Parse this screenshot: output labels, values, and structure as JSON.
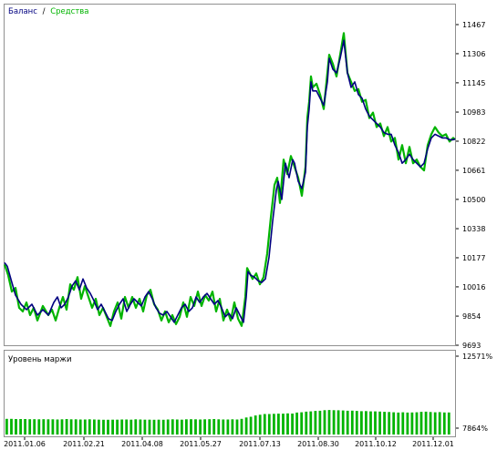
{
  "colors": {
    "balance": "#000080",
    "equity": "#00b400",
    "margin_bars": "#00b400",
    "frame": "#909090",
    "grid": "#e0e0e0"
  },
  "chart_data": [
    {
      "type": "line",
      "legend": {
        "placement": "top-left",
        "separator": "/",
        "balance_label": "Баланс",
        "equity_label": "Средства"
      },
      "ylim": [
        9693,
        11550
      ],
      "y_ticks": [
        "11467",
        "11306",
        "11145",
        "10983",
        "10822",
        "10661",
        "10500",
        "10338",
        "10177",
        "10016",
        "9854",
        "9693"
      ],
      "grid": true,
      "series": [
        {
          "name": "Баланс",
          "values": [
            [
              0,
              10150
            ],
            [
              3,
              10130
            ],
            [
              8,
              10040
            ],
            [
              12,
              9970
            ],
            [
              18,
              9920
            ],
            [
              24,
              9890
            ],
            [
              30,
              9920
            ],
            [
              36,
              9860
            ],
            [
              42,
              9890
            ],
            [
              48,
              9860
            ],
            [
              54,
              9930
            ],
            [
              58,
              9960
            ],
            [
              62,
              9900
            ],
            [
              66,
              9920
            ],
            [
              70,
              9960
            ],
            [
              74,
              10020
            ],
            [
              78,
              10050
            ],
            [
              82,
              10000
            ],
            [
              86,
              10060
            ],
            [
              90,
              10010
            ],
            [
              94,
              9980
            ],
            [
              98,
              9940
            ],
            [
              102,
              9890
            ],
            [
              106,
              9920
            ],
            [
              110,
              9880
            ],
            [
              114,
              9840
            ],
            [
              118,
              9830
            ],
            [
              122,
              9880
            ],
            [
              126,
              9920
            ],
            [
              130,
              9950
            ],
            [
              134,
              9880
            ],
            [
              138,
              9920
            ],
            [
              142,
              9950
            ],
            [
              146,
              9930
            ],
            [
              150,
              9910
            ],
            [
              154,
              9960
            ],
            [
              158,
              9990
            ],
            [
              162,
              9950
            ],
            [
              166,
              9900
            ],
            [
              170,
              9870
            ],
            [
              174,
              9860
            ],
            [
              178,
              9880
            ],
            [
              182,
              9850
            ],
            [
              186,
              9820
            ],
            [
              190,
              9860
            ],
            [
              194,
              9900
            ],
            [
              198,
              9920
            ],
            [
              202,
              9880
            ],
            [
              206,
              9900
            ],
            [
              210,
              9960
            ],
            [
              214,
              9930
            ],
            [
              218,
              9960
            ],
            [
              222,
              9980
            ],
            [
              226,
              9950
            ],
            [
              230,
              9920
            ],
            [
              234,
              9940
            ],
            [
              238,
              9900
            ],
            [
              242,
              9850
            ],
            [
              246,
              9870
            ],
            [
              250,
              9840
            ],
            [
              254,
              9900
            ],
            [
              258,
              9860
            ],
            [
              262,
              9820
            ],
            [
              265,
              9960
            ],
            [
              267,
              10100
            ],
            [
              270,
              10080
            ],
            [
              274,
              10070
            ],
            [
              278,
              10050
            ],
            [
              282,
              10040
            ],
            [
              286,
              10060
            ],
            [
              290,
              10180
            ],
            [
              294,
              10380
            ],
            [
              298,
              10550
            ],
            [
              300,
              10600
            ],
            [
              304,
              10500
            ],
            [
              308,
              10700
            ],
            [
              312,
              10620
            ],
            [
              316,
              10720
            ],
            [
              318,
              10700
            ],
            [
              322,
              10600
            ],
            [
              326,
              10560
            ],
            [
              330,
              10650
            ],
            [
              332,
              10900
            ],
            [
              334,
              11000
            ],
            [
              336,
              11150
            ],
            [
              338,
              11100
            ],
            [
              342,
              11100
            ],
            [
              346,
              11060
            ],
            [
              350,
              11020
            ],
            [
              354,
              11150
            ],
            [
              356,
              11280
            ],
            [
              360,
              11220
            ],
            [
              364,
              11200
            ],
            [
              368,
              11280
            ],
            [
              372,
              11380
            ],
            [
              376,
              11200
            ],
            [
              380,
              11120
            ],
            [
              384,
              11150
            ],
            [
              388,
              11080
            ],
            [
              392,
              11060
            ],
            [
              396,
              11000
            ],
            [
              400,
              10960
            ],
            [
              404,
              10940
            ],
            [
              408,
              10920
            ],
            [
              412,
              10900
            ],
            [
              416,
              10870
            ],
            [
              420,
              10860
            ],
            [
              424,
              10860
            ],
            [
              428,
              10800
            ],
            [
              432,
              10760
            ],
            [
              436,
              10700
            ],
            [
              440,
              10720
            ],
            [
              444,
              10750
            ],
            [
              448,
              10720
            ],
            [
              452,
              10700
            ],
            [
              456,
              10680
            ],
            [
              460,
              10700
            ],
            [
              464,
              10780
            ],
            [
              468,
              10840
            ],
            [
              472,
              10860
            ],
            [
              476,
              10850
            ],
            [
              480,
              10840
            ],
            [
              484,
              10840
            ],
            [
              488,
              10830
            ],
            [
              492,
              10830
            ],
            [
              494,
              10835
            ]
          ]
        },
        {
          "name": "Средства",
          "values": [
            [
              0,
              10140
            ],
            [
              4,
              10080
            ],
            [
              8,
              9990
            ],
            [
              12,
              10010
            ],
            [
              16,
              9900
            ],
            [
              20,
              9880
            ],
            [
              24,
              9930
            ],
            [
              28,
              9860
            ],
            [
              32,
              9900
            ],
            [
              36,
              9830
            ],
            [
              42,
              9910
            ],
            [
              48,
              9860
            ],
            [
              52,
              9890
            ],
            [
              56,
              9830
            ],
            [
              60,
              9900
            ],
            [
              64,
              9960
            ],
            [
              68,
              9890
            ],
            [
              72,
              10030
            ],
            [
              76,
              10000
            ],
            [
              80,
              10070
            ],
            [
              84,
              9950
            ],
            [
              88,
              10020
            ],
            [
              92,
              9960
            ],
            [
              96,
              9900
            ],
            [
              100,
              9950
            ],
            [
              104,
              9860
            ],
            [
              108,
              9900
            ],
            [
              112,
              9850
            ],
            [
              116,
              9800
            ],
            [
              120,
              9880
            ],
            [
              124,
              9930
            ],
            [
              128,
              9840
            ],
            [
              132,
              9960
            ],
            [
              136,
              9900
            ],
            [
              140,
              9960
            ],
            [
              144,
              9900
            ],
            [
              148,
              9950
            ],
            [
              152,
              9880
            ],
            [
              156,
              9970
            ],
            [
              160,
              10000
            ],
            [
              164,
              9920
            ],
            [
              168,
              9890
            ],
            [
              172,
              9830
            ],
            [
              176,
              9880
            ],
            [
              180,
              9820
            ],
            [
              184,
              9860
            ],
            [
              188,
              9810
            ],
            [
              192,
              9850
            ],
            [
              196,
              9930
            ],
            [
              200,
              9850
            ],
            [
              204,
              9960
            ],
            [
              208,
              9910
            ],
            [
              212,
              9990
            ],
            [
              216,
              9910
            ],
            [
              220,
              9970
            ],
            [
              224,
              9940
            ],
            [
              228,
              9990
            ],
            [
              232,
              9880
            ],
            [
              236,
              9950
            ],
            [
              240,
              9830
            ],
            [
              244,
              9890
            ],
            [
              248,
              9830
            ],
            [
              252,
              9930
            ],
            [
              256,
              9840
            ],
            [
              260,
              9800
            ],
            [
              264,
              9960
            ],
            [
              266,
              10120
            ],
            [
              268,
              10100
            ],
            [
              272,
              10060
            ],
            [
              276,
              10090
            ],
            [
              280,
              10030
            ],
            [
              284,
              10070
            ],
            [
              288,
              10200
            ],
            [
              292,
              10400
            ],
            [
              296,
              10580
            ],
            [
              299,
              10620
            ],
            [
              302,
              10480
            ],
            [
              306,
              10720
            ],
            [
              310,
              10640
            ],
            [
              314,
              10740
            ],
            [
              318,
              10680
            ],
            [
              322,
              10620
            ],
            [
              326,
              10520
            ],
            [
              330,
              10680
            ],
            [
              332,
              10950
            ],
            [
              334,
              11040
            ],
            [
              336,
              11180
            ],
            [
              338,
              11120
            ],
            [
              342,
              11140
            ],
            [
              346,
              11080
            ],
            [
              350,
              11000
            ],
            [
              354,
              11200
            ],
            [
              356,
              11300
            ],
            [
              360,
              11250
            ],
            [
              364,
              11180
            ],
            [
              368,
              11300
            ],
            [
              372,
              11420
            ],
            [
              376,
              11200
            ],
            [
              380,
              11150
            ],
            [
              384,
              11100
            ],
            [
              388,
              11110
            ],
            [
              392,
              11040
            ],
            [
              396,
              11050
            ],
            [
              400,
              10950
            ],
            [
              404,
              10980
            ],
            [
              408,
              10900
            ],
            [
              412,
              10920
            ],
            [
              416,
              10850
            ],
            [
              420,
              10900
            ],
            [
              424,
              10820
            ],
            [
              428,
              10840
            ],
            [
              432,
              10720
            ],
            [
              436,
              10800
            ],
            [
              440,
              10700
            ],
            [
              444,
              10790
            ],
            [
              448,
              10700
            ],
            [
              452,
              10720
            ],
            [
              456,
              10680
            ],
            [
              460,
              10660
            ],
            [
              464,
              10800
            ],
            [
              468,
              10860
            ],
            [
              472,
              10900
            ],
            [
              476,
              10870
            ],
            [
              480,
              10850
            ],
            [
              484,
              10860
            ],
            [
              488,
              10820
            ],
            [
              492,
              10840
            ],
            [
              494,
              10830
            ]
          ]
        }
      ]
    },
    {
      "type": "bar",
      "title": "Уровень маржи",
      "y_ticks": [
        "12571%",
        "7864%"
      ],
      "ylim": [
        7864,
        12571
      ],
      "values": [
        8470,
        8470,
        8460,
        8460,
        8460,
        8450,
        8450,
        8440,
        8450,
        8440,
        8440,
        8430,
        8440,
        8460,
        8440,
        8440,
        8430,
        8430,
        8440,
        8430,
        8420,
        8410,
        8410,
        8420,
        8420,
        8430,
        8430,
        8420,
        8440,
        8430,
        8420,
        8420,
        8410,
        8420,
        8410,
        8430,
        8440,
        8430,
        8420,
        8440,
        8450,
        8440,
        8430,
        8440,
        8450,
        8460,
        8440,
        8430,
        8430,
        8440,
        8430,
        8470,
        8560,
        8610,
        8690,
        8740,
        8790,
        8790,
        8800,
        8810,
        8810,
        8830,
        8820,
        8880,
        8900,
        8940,
        8960,
        8990,
        9000,
        9040,
        9050,
        9040,
        9030,
        9020,
        9000,
        9010,
        8990,
        8970,
        8980,
        8960,
        8960,
        8950,
        8930,
        8920,
        8900,
        8880,
        8900,
        8880,
        8890,
        8900,
        8930,
        8940,
        8920,
        8900,
        8910,
        8890,
        8890
      ]
    }
  ],
  "x_axis": {
    "labels": [
      "2011.01.06",
      "2011.02.21",
      "2011.04.08",
      "2011.05.27",
      "2011.07.13",
      "2011.08.30",
      "2011.10.12",
      "2011.12.01"
    ]
  }
}
